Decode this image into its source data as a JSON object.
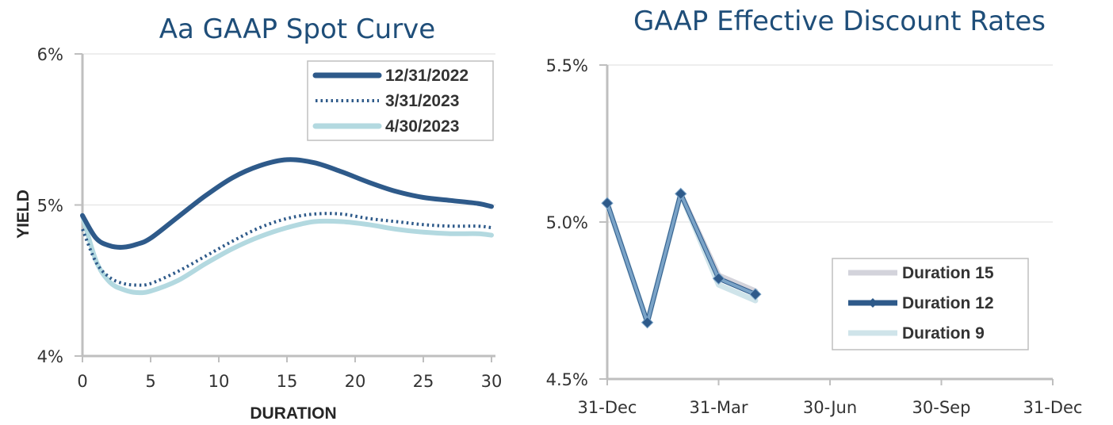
{
  "chart_data": [
    {
      "type": "line",
      "title": "Aa GAAP Spot Curve",
      "xlabel": "DURATION",
      "ylabel": "YIELD",
      "xlim": [
        0,
        30
      ],
      "ylim": [
        4,
        6
      ],
      "xticks": [
        0,
        5,
        10,
        15,
        20,
        25,
        30
      ],
      "yticks": [
        {
          "value": 4,
          "label": "4%"
        },
        {
          "value": 5,
          "label": "5%"
        },
        {
          "value": 6,
          "label": "6%"
        }
      ],
      "grid": "horizontal",
      "legend": "top-right",
      "series": [
        {
          "name": "12/31/2022",
          "color": "#2e5a8a",
          "style": "solid",
          "x": [
            0,
            1,
            2,
            3,
            4,
            5,
            7,
            9,
            11,
            13,
            15,
            17,
            19,
            21,
            23,
            25,
            27,
            29,
            30
          ],
          "y": [
            4.93,
            4.78,
            4.73,
            4.72,
            4.74,
            4.78,
            4.92,
            5.06,
            5.18,
            5.26,
            5.3,
            5.28,
            5.22,
            5.15,
            5.09,
            5.05,
            5.03,
            5.01,
            4.99
          ]
        },
        {
          "name": "3/31/2023",
          "color": "#2e5a8a",
          "style": "dotted",
          "x": [
            0,
            1,
            2,
            3,
            4,
            5,
            7,
            9,
            11,
            13,
            15,
            17,
            19,
            21,
            23,
            25,
            27,
            29,
            30
          ],
          "y": [
            4.84,
            4.62,
            4.52,
            4.48,
            4.47,
            4.48,
            4.56,
            4.66,
            4.76,
            4.85,
            4.91,
            4.94,
            4.94,
            4.91,
            4.89,
            4.87,
            4.86,
            4.86,
            4.85
          ]
        },
        {
          "name": "4/30/2023",
          "color": "#b3d9e0",
          "style": "solid",
          "x": [
            0,
            1,
            2,
            3,
            4,
            5,
            7,
            9,
            11,
            13,
            15,
            17,
            19,
            21,
            23,
            25,
            27,
            29,
            30
          ],
          "y": [
            4.93,
            4.63,
            4.49,
            4.44,
            4.42,
            4.43,
            4.5,
            4.61,
            4.71,
            4.79,
            4.85,
            4.89,
            4.89,
            4.87,
            4.84,
            4.82,
            4.81,
            4.81,
            4.8
          ]
        }
      ]
    },
    {
      "type": "line",
      "title": "GAAP Effective Discount Rates",
      "xlabel": "",
      "ylabel": "",
      "categories": [
        "31-Dec",
        "31-Mar",
        "30-Jun",
        "30-Sep",
        "31-Dec"
      ],
      "ylim": [
        4.5,
        5.5
      ],
      "yticks": [
        {
          "value": 4.5,
          "label": "4.5%"
        },
        {
          "value": 5.0,
          "label": "5.0%"
        },
        {
          "value": 5.5,
          "label": "5.5%"
        }
      ],
      "grid": "horizontal",
      "legend": "bottom-right",
      "x_points": [
        "31-Dec",
        "15-Jan",
        "15-Feb",
        "31-Mar",
        "30-Apr"
      ],
      "series": [
        {
          "name": "Duration 15",
          "color": "#d3d3db",
          "marker": false,
          "values": [
            5.06,
            4.68,
            5.09,
            4.83,
            4.78
          ]
        },
        {
          "name": "Duration 12",
          "color": "#2e5a8a",
          "marker": "diamond",
          "values": [
            5.06,
            4.68,
            5.09,
            4.82,
            4.77
          ]
        },
        {
          "name": "Duration 9",
          "color": "#cfe4ea",
          "marker": false,
          "values": [
            5.06,
            4.68,
            5.09,
            4.8,
            4.75
          ]
        }
      ],
      "overlay_series_color": "#7aa3c7"
    }
  ]
}
